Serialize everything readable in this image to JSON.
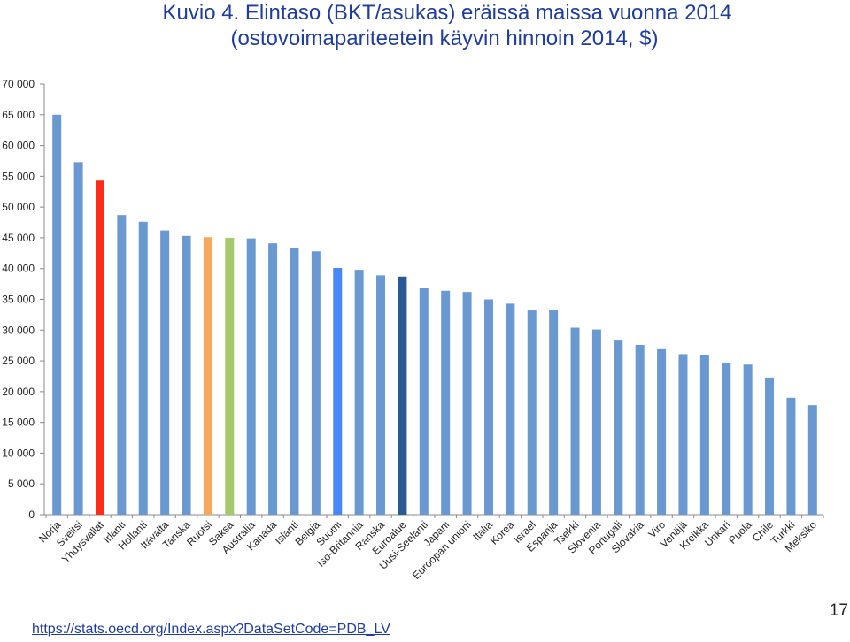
{
  "title_line1": "Kuvio 4. Elintaso (BKT/asukas) eräissä maissa vuonna 2014",
  "title_line2": "(ostovoimapariteetein käyvin hinnoin 2014, $)",
  "source": "https://stats.oecd.org/Index.aspx?DataSetCode=PDB_LV",
  "page_number": "17",
  "chart_data": {
    "type": "bar",
    "title": "Kuvio 4. Elintaso (BKT/asukas) eräissä maissa vuonna 2014 (ostovoimapariteetein käyvin hinnoin 2014, $)",
    "xlabel": "",
    "ylabel": "",
    "ylim": [
      0,
      70000
    ],
    "yticks": [
      0,
      5000,
      10000,
      15000,
      20000,
      25000,
      30000,
      35000,
      40000,
      45000,
      50000,
      55000,
      60000,
      65000,
      70000
    ],
    "ytick_labels": [
      "0",
      "5 000",
      "10 000",
      "15 000",
      "20 000",
      "25 000",
      "30 000",
      "35 000",
      "40 000",
      "45 000",
      "50 000",
      "55 000",
      "60 000",
      "65 000",
      "70 000"
    ],
    "grid": false,
    "legend": "none",
    "categories": [
      "Norja",
      "Sveitsi",
      "Yhdysvallat",
      "Irlanti",
      "Hollanti",
      "Itävalta",
      "Tanska",
      "Ruotsi",
      "Saksa",
      "Australia",
      "Kanada",
      "Islanti",
      "Belgia",
      "Suomi",
      "Iso-Britannia",
      "Ranska",
      "Euroalue",
      "Uusi-Seelanti",
      "Japani",
      "Euroopan unioni",
      "Italia",
      "Korea",
      "Israel",
      "Espanja",
      "Tsekki",
      "Slovenia",
      "Portugali",
      "Slovakia",
      "Viro",
      "Venäjä",
      "Kreikka",
      "Unkari",
      "Puola",
      "Chile",
      "Turkki",
      "Meksiko"
    ],
    "values": [
      65000,
      57300,
      54300,
      48700,
      47600,
      46200,
      45300,
      45100,
      45000,
      44900,
      44100,
      43300,
      42800,
      40100,
      39800,
      38900,
      38700,
      36800,
      36400,
      36200,
      35000,
      34300,
      33300,
      33300,
      30400,
      30100,
      28300,
      27600,
      26900,
      26100,
      25900,
      24600,
      24400,
      22300,
      19000,
      17800
    ],
    "colors": [
      "#6a98d1",
      "#6a98d1",
      "#ff2a1a",
      "#6a98d1",
      "#6a98d1",
      "#6a98d1",
      "#6a98d1",
      "#f5a85e",
      "#a5c96a",
      "#6a98d1",
      "#6a98d1",
      "#6a98d1",
      "#6a98d1",
      "#4a86f8",
      "#6a98d1",
      "#6a98d1",
      "#2a5a93",
      "#6a98d1",
      "#6a98d1",
      "#6a98d1",
      "#6a98d1",
      "#6a98d1",
      "#6a98d1",
      "#6a98d1",
      "#6a98d1",
      "#6a98d1",
      "#6a98d1",
      "#6a98d1",
      "#6a98d1",
      "#6a98d1",
      "#6a98d1",
      "#6a98d1",
      "#6a98d1",
      "#6a98d1",
      "#6a98d1",
      "#6a98d1"
    ]
  }
}
